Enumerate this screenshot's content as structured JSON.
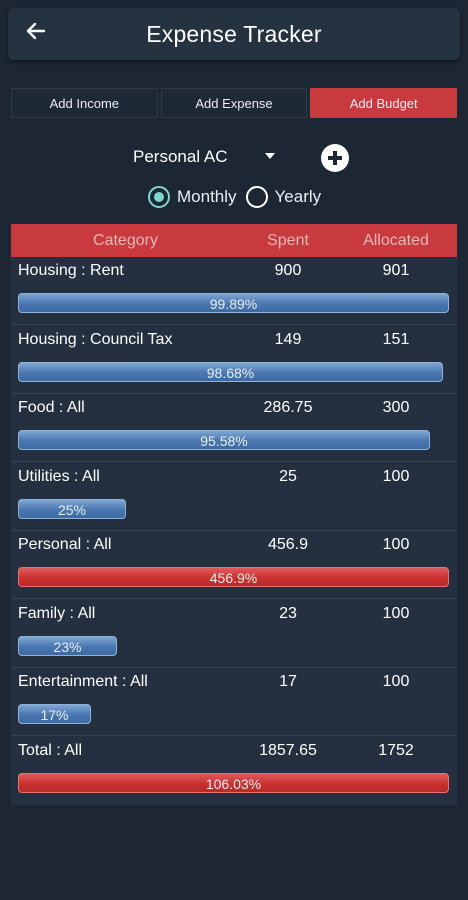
{
  "header": {
    "title": "Expense Tracker",
    "back_icon": "arrow-left-icon"
  },
  "tabs": [
    {
      "label": "Add Income",
      "active": false
    },
    {
      "label": "Add Expense",
      "active": false
    },
    {
      "label": "Add Budget",
      "active": true
    }
  ],
  "account": {
    "selected": "Personal AC",
    "add_icon": "plus-circle-icon"
  },
  "period": {
    "options": [
      {
        "label": "Monthly",
        "checked": true
      },
      {
        "label": "Yearly",
        "checked": false
      }
    ]
  },
  "colors": {
    "accent_red": "#c83a3d",
    "bar_blue": "#4a77b0",
    "radio_teal": "#7fd6cb",
    "background": "#1c2733"
  },
  "table": {
    "headers": {
      "category": "Category",
      "spent": "Spent",
      "allocated": "Allocated"
    },
    "rows": [
      {
        "category": "Housing : Rent",
        "spent": "900",
        "allocated": "901",
        "percent_label": "99.89%",
        "percent": 99.89,
        "over_budget": false
      },
      {
        "category": "Housing : Council Tax",
        "spent": "149",
        "allocated": "151",
        "percent_label": "98.68%",
        "percent": 98.68,
        "over_budget": false
      },
      {
        "category": "Food : All",
        "spent": "286.75",
        "allocated": "300",
        "percent_label": "95.58%",
        "percent": 95.58,
        "over_budget": false
      },
      {
        "category": "Utilities : All",
        "spent": "25",
        "allocated": "100",
        "percent_label": "25%",
        "percent": 25,
        "over_budget": false
      },
      {
        "category": "Personal : All",
        "spent": "456.9",
        "allocated": "100",
        "percent_label": "456.9%",
        "percent": 100,
        "over_budget": true
      },
      {
        "category": "Family : All",
        "spent": "23",
        "allocated": "100",
        "percent_label": "23%",
        "percent": 23,
        "over_budget": false
      },
      {
        "category": "Entertainment : All",
        "spent": "17",
        "allocated": "100",
        "percent_label": "17%",
        "percent": 17,
        "over_budget": false
      },
      {
        "category": "Total : All",
        "spent": "1857.65",
        "allocated": "1752",
        "percent_label": "106.03%",
        "percent": 100,
        "over_budget": true
      }
    ]
  }
}
